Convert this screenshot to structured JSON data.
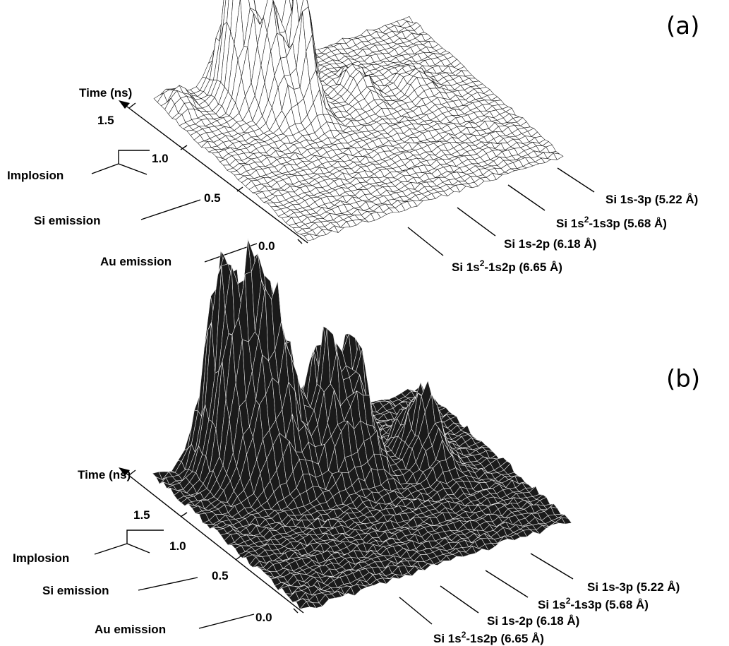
{
  "chart_data": [
    {
      "type": "surface",
      "panel_label": "(a)",
      "time_axis_label": "Time (ns)",
      "time_ticks": [
        "0.0",
        "0.5",
        "1.0",
        "1.5"
      ],
      "left_annotations": [
        "Implosion",
        "Si emission",
        "Au emission"
      ],
      "lines": [
        "Si 1s-3p (5.22 Å)",
        "Si 1s²-1s3p (5.68 Å)",
        "Si 1s-2p (6.18 Å)",
        "Si 1s²-1s2p (6.65 Å)"
      ],
      "peaks": [
        {
          "u": 0.25,
          "v": 0.88,
          "h": 1.0
        },
        {
          "u": 0.31,
          "v": 0.75,
          "h": 0.7
        },
        {
          "u": 0.4,
          "v": 0.72,
          "h": 0.9
        },
        {
          "u": 0.62,
          "v": 0.7,
          "h": 0.15
        },
        {
          "u": 0.8,
          "v": 0.62,
          "h": 0.12
        },
        {
          "u": 0.06,
          "v": 0.95,
          "h": 0.12
        }
      ]
    },
    {
      "type": "surface",
      "panel_label": "(b)",
      "time_axis_label": "Time (ns)",
      "time_ticks": [
        "0.0",
        "0.5",
        "1.0",
        "1.5"
      ],
      "left_annotations": [
        "Implosion",
        "Si emission",
        "Au emission"
      ],
      "lines": [
        "Si 1s-3p (5.22 Å)",
        "Si 1s²-1s3p (5.68 Å)",
        "Si 1s-2p (6.18 Å)",
        "Si 1s²-1s2p (6.65 Å)"
      ],
      "peaks": [
        {
          "u": 0.2,
          "v": 0.9,
          "h": 1.0
        },
        {
          "u": 0.27,
          "v": 0.82,
          "h": 0.95
        },
        {
          "u": 0.35,
          "v": 0.78,
          "h": 0.85
        },
        {
          "u": 0.48,
          "v": 0.72,
          "h": 0.75
        },
        {
          "u": 0.58,
          "v": 0.7,
          "h": 0.65
        },
        {
          "u": 0.78,
          "v": 0.6,
          "h": 0.45
        }
      ]
    }
  ]
}
